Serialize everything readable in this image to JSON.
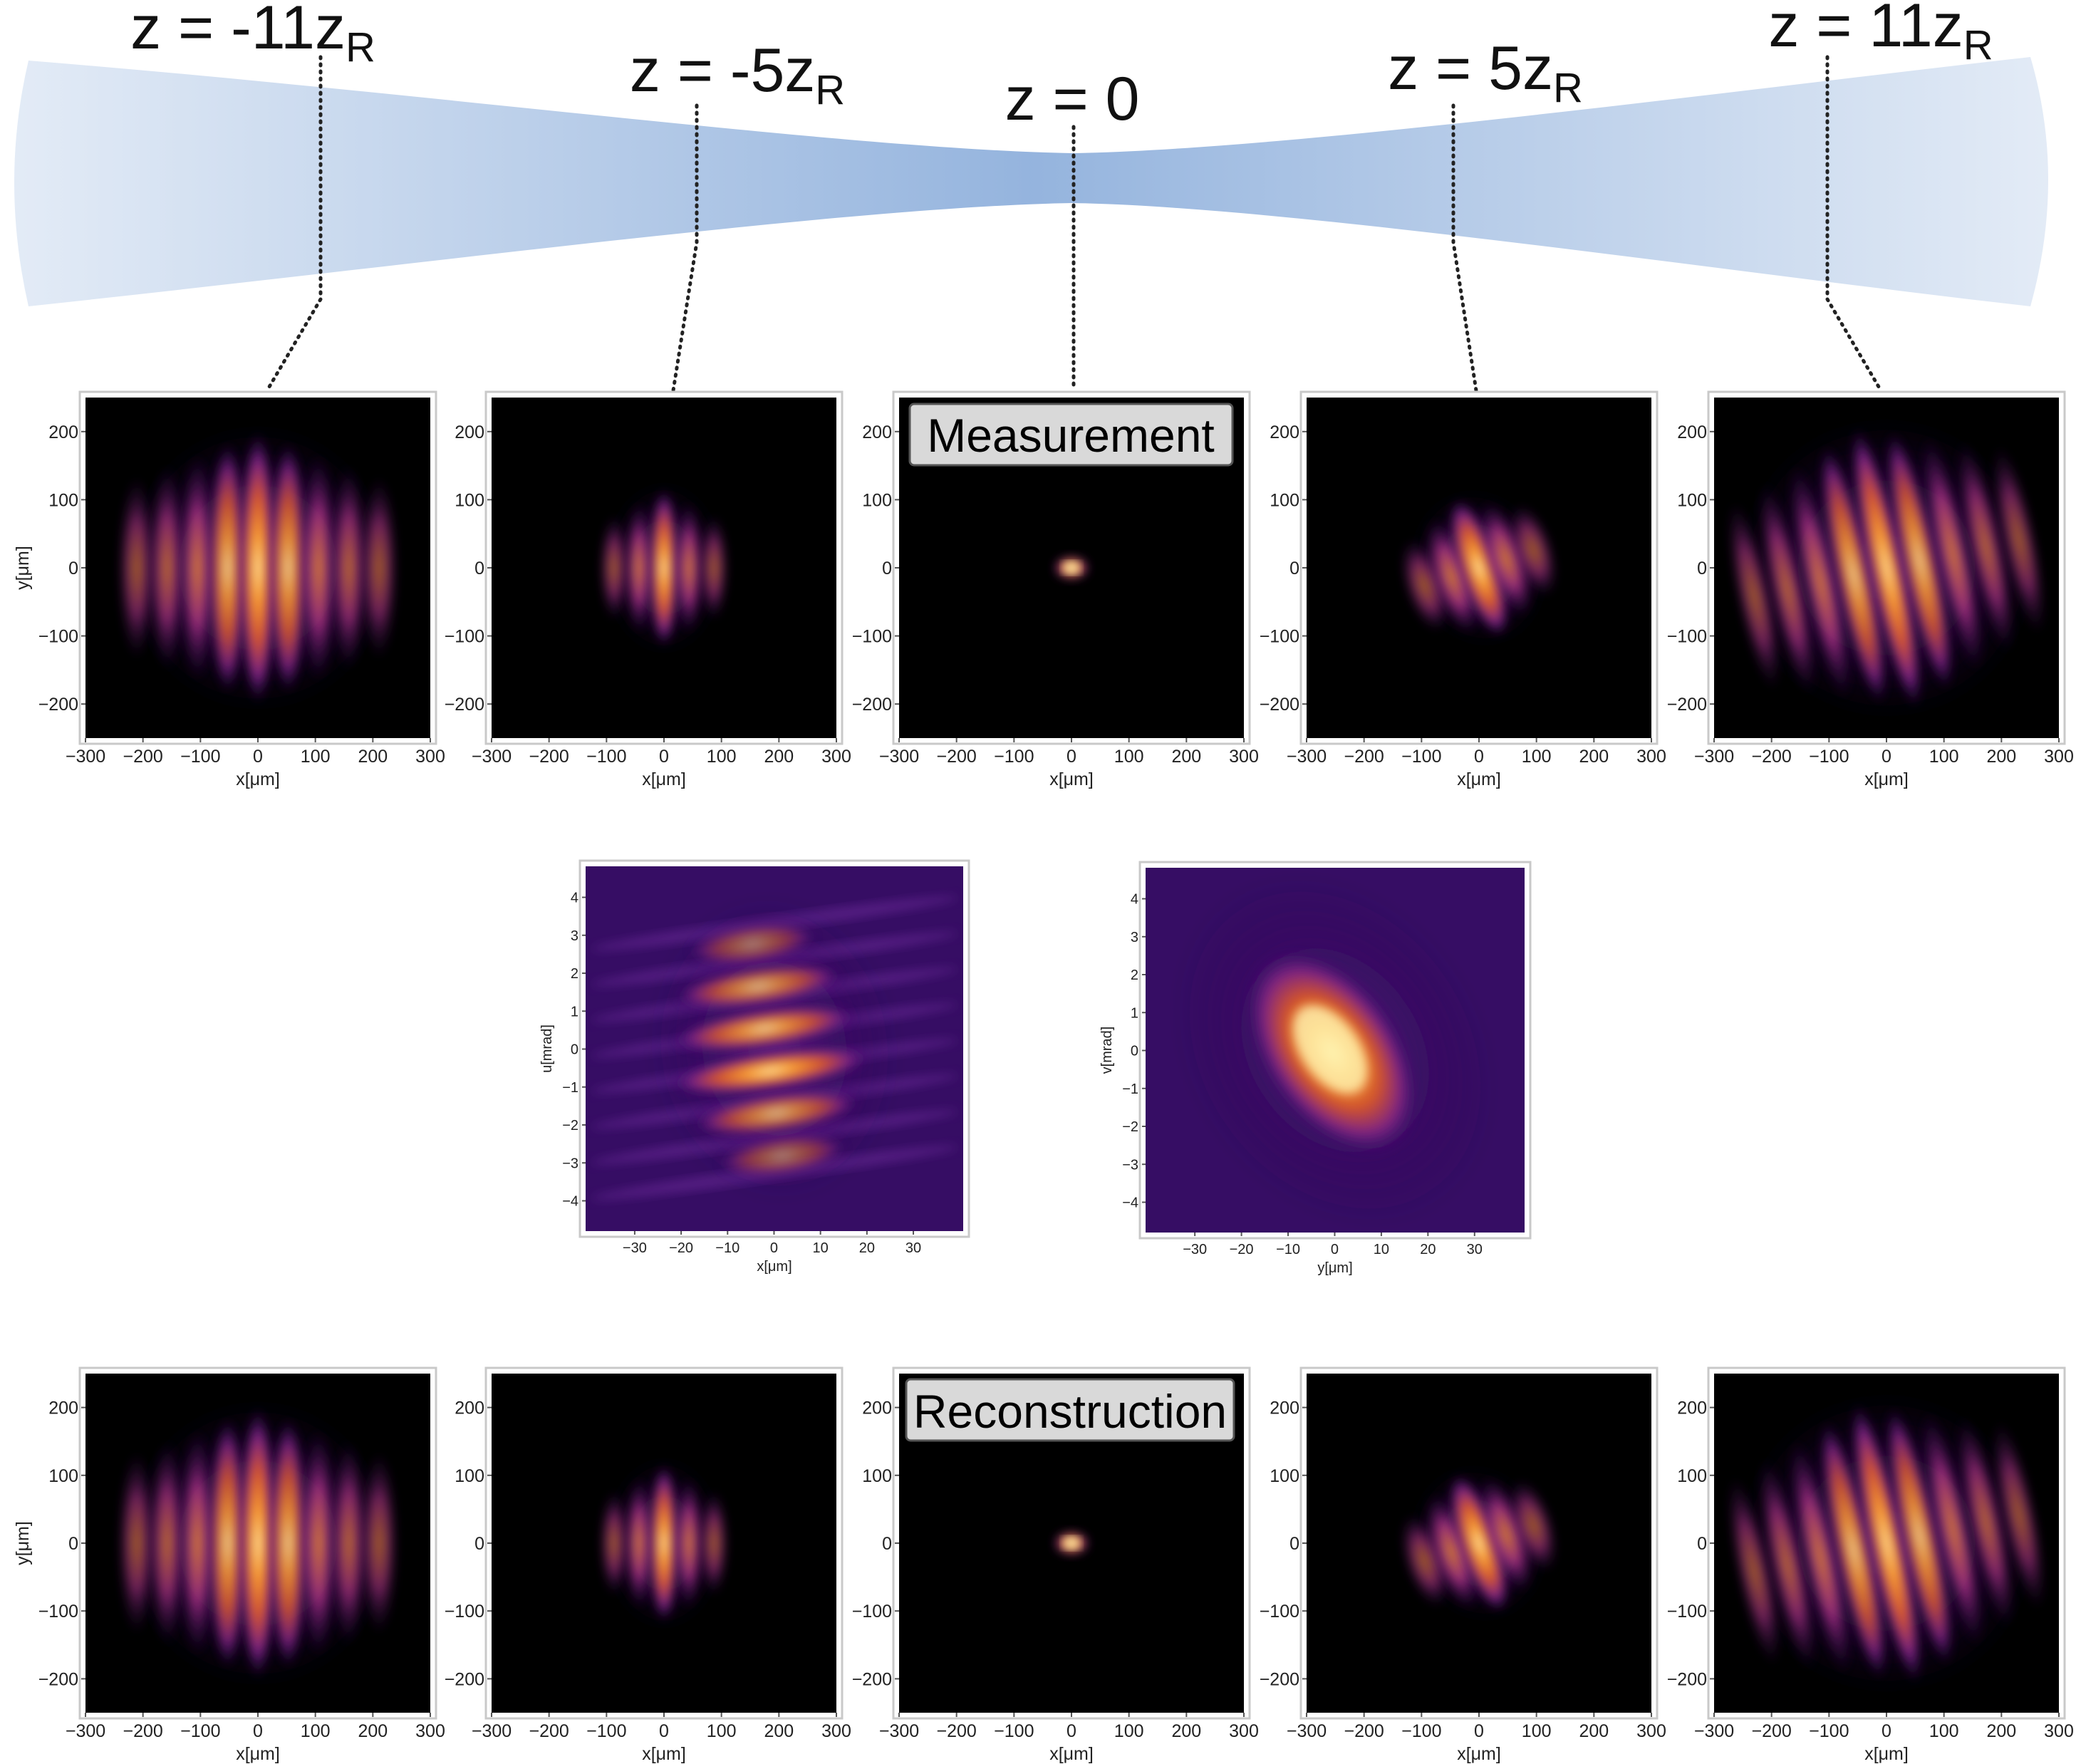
{
  "z_labels": [
    {
      "main": "z = -11z",
      "sub": "R"
    },
    {
      "main": "z = -5z",
      "sub": "R"
    },
    {
      "main": "z = 0",
      "sub": ""
    },
    {
      "main": "z = 5z",
      "sub": "R"
    },
    {
      "main": "z = 11z",
      "sub": "R"
    }
  ],
  "banners": {
    "top": "Measurement",
    "bottom": "Reconstruction"
  },
  "profile_axes": {
    "x_label": "x[μm]",
    "y_label": "y[μm]",
    "x_ticks": [
      "−300",
      "−200",
      "−100",
      "0",
      "100",
      "200",
      "300"
    ],
    "y_ticks": [
      "200",
      "100",
      "0",
      "−100",
      "−200"
    ]
  },
  "phase_space": {
    "left": {
      "x_label": "x[μm]",
      "y_label": "u[mrad]"
    },
    "right": {
      "x_label": "y[μm]",
      "y_label": "v[mrad]"
    },
    "x_ticks": [
      "−30",
      "−20",
      "−10",
      "0",
      "10",
      "20",
      "30"
    ],
    "y_ticks": [
      "4",
      "3",
      "2",
      "1",
      "0",
      "−1",
      "−2",
      "−3",
      "−4"
    ]
  },
  "colormap": {
    "background": "#000000",
    "dark": "#3d0f6b",
    "mid": "#a8368c",
    "hot": "#f47c1c",
    "peak": "#fff3b0"
  },
  "beam_color": "#8fb0dc"
}
